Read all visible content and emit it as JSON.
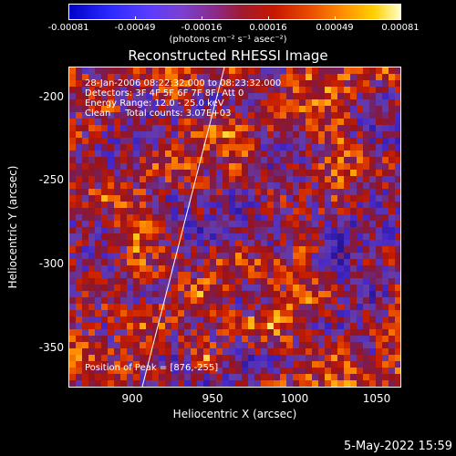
{
  "colorbar": {
    "ticks": [
      "-0.00081",
      "-0.00049",
      "-0.00016",
      "0.00016",
      "0.00049",
      "0.00081"
    ],
    "units": "(photons cm⁻² s⁻¹ asec⁻²)"
  },
  "title": "Reconstructed RHESSI Image",
  "info": {
    "line1": "28-Jan-2006 08:22:32.000 to 08:23:32.000",
    "line2": "Detectors: 3F 4F 5F 6F 7F 8F, Att 0",
    "line3": "Energy Range: 12.0 - 25.0 keV",
    "line4": "Clean     Total counts: 3.07E+03",
    "peak": "Position of Peak = [876,-255]"
  },
  "axes": {
    "xlabel": "Heliocentric X (arcsec)",
    "ylabel": "Heliocentric Y (arcsec)",
    "xticks": [
      "900",
      "950",
      "1000",
      "1050"
    ],
    "yticks": [
      "-200",
      "-250",
      "-300",
      "-350"
    ],
    "xlim": [
      863,
      1055
    ],
    "ylim": [
      -378,
      -183
    ]
  },
  "timestamp": "5-May-2022 15:59",
  "colors": {
    "background": "#000000",
    "foreground": "#ffffff"
  }
}
